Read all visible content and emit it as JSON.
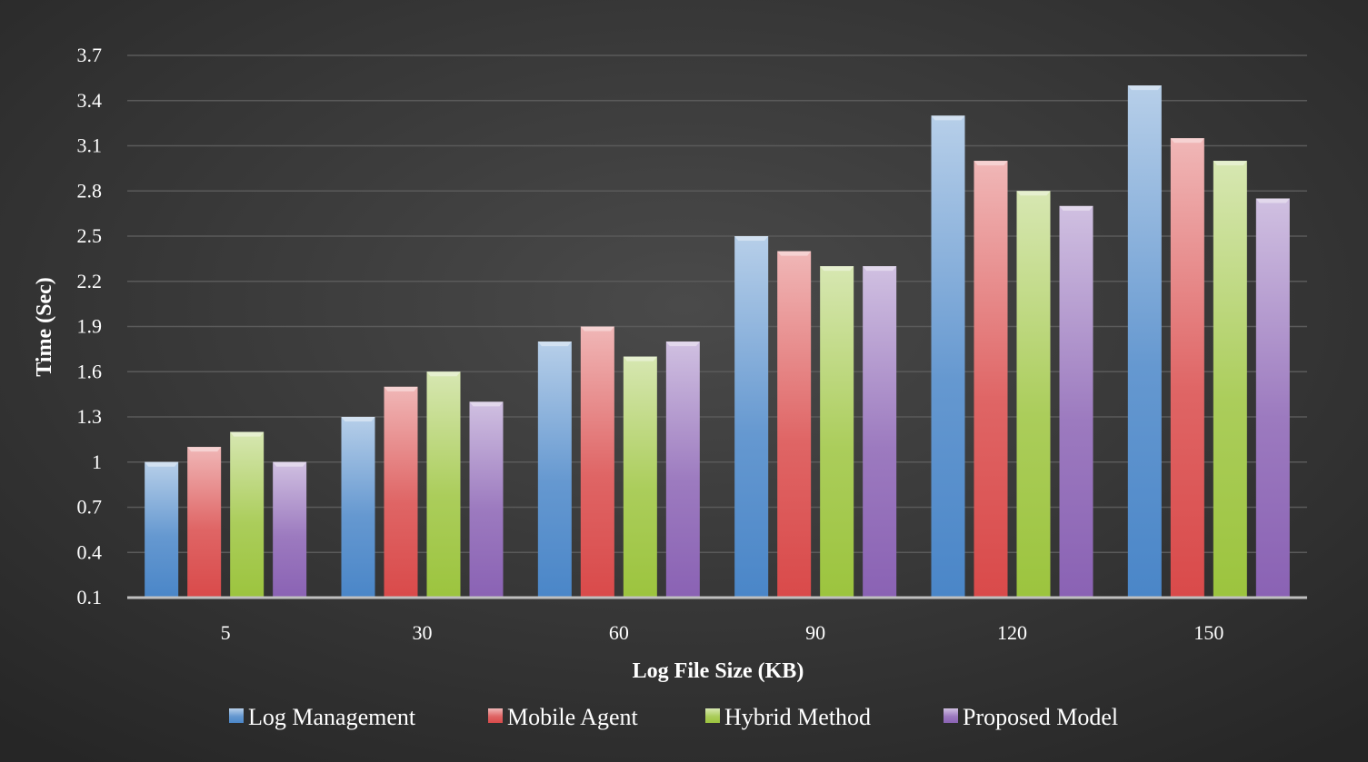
{
  "chart_data": {
    "type": "bar",
    "title": "",
    "xlabel": "Log File Size (KB)",
    "ylabel": "Time (Sec)",
    "categories": [
      "5",
      "30",
      "60",
      "90",
      "120",
      "150"
    ],
    "y_ticks": [
      "0.1",
      "0.4",
      "0.7",
      "1",
      "1.3",
      "1.6",
      "1.9",
      "2.2",
      "2.5",
      "2.8",
      "3.1",
      "3.4",
      "3.7"
    ],
    "ylim": [
      0.1,
      3.7
    ],
    "grid": true,
    "legend_position": "bottom",
    "series": [
      {
        "name": "Log Management",
        "color": "#4a86c8",
        "values": [
          1.0,
          1.3,
          1.8,
          2.5,
          3.3,
          3.5
        ]
      },
      {
        "name": "Mobile Agent",
        "color": "#d94a4a",
        "values": [
          1.1,
          1.5,
          1.9,
          2.4,
          3.0,
          3.15
        ]
      },
      {
        "name": "Hybrid Method",
        "color": "#9cc43e",
        "values": [
          1.2,
          1.6,
          1.7,
          2.3,
          2.8,
          3.0
        ]
      },
      {
        "name": "Proposed Model",
        "color": "#8a62b4",
        "values": [
          1.0,
          1.4,
          1.8,
          2.3,
          2.7,
          2.75
        ]
      }
    ]
  }
}
